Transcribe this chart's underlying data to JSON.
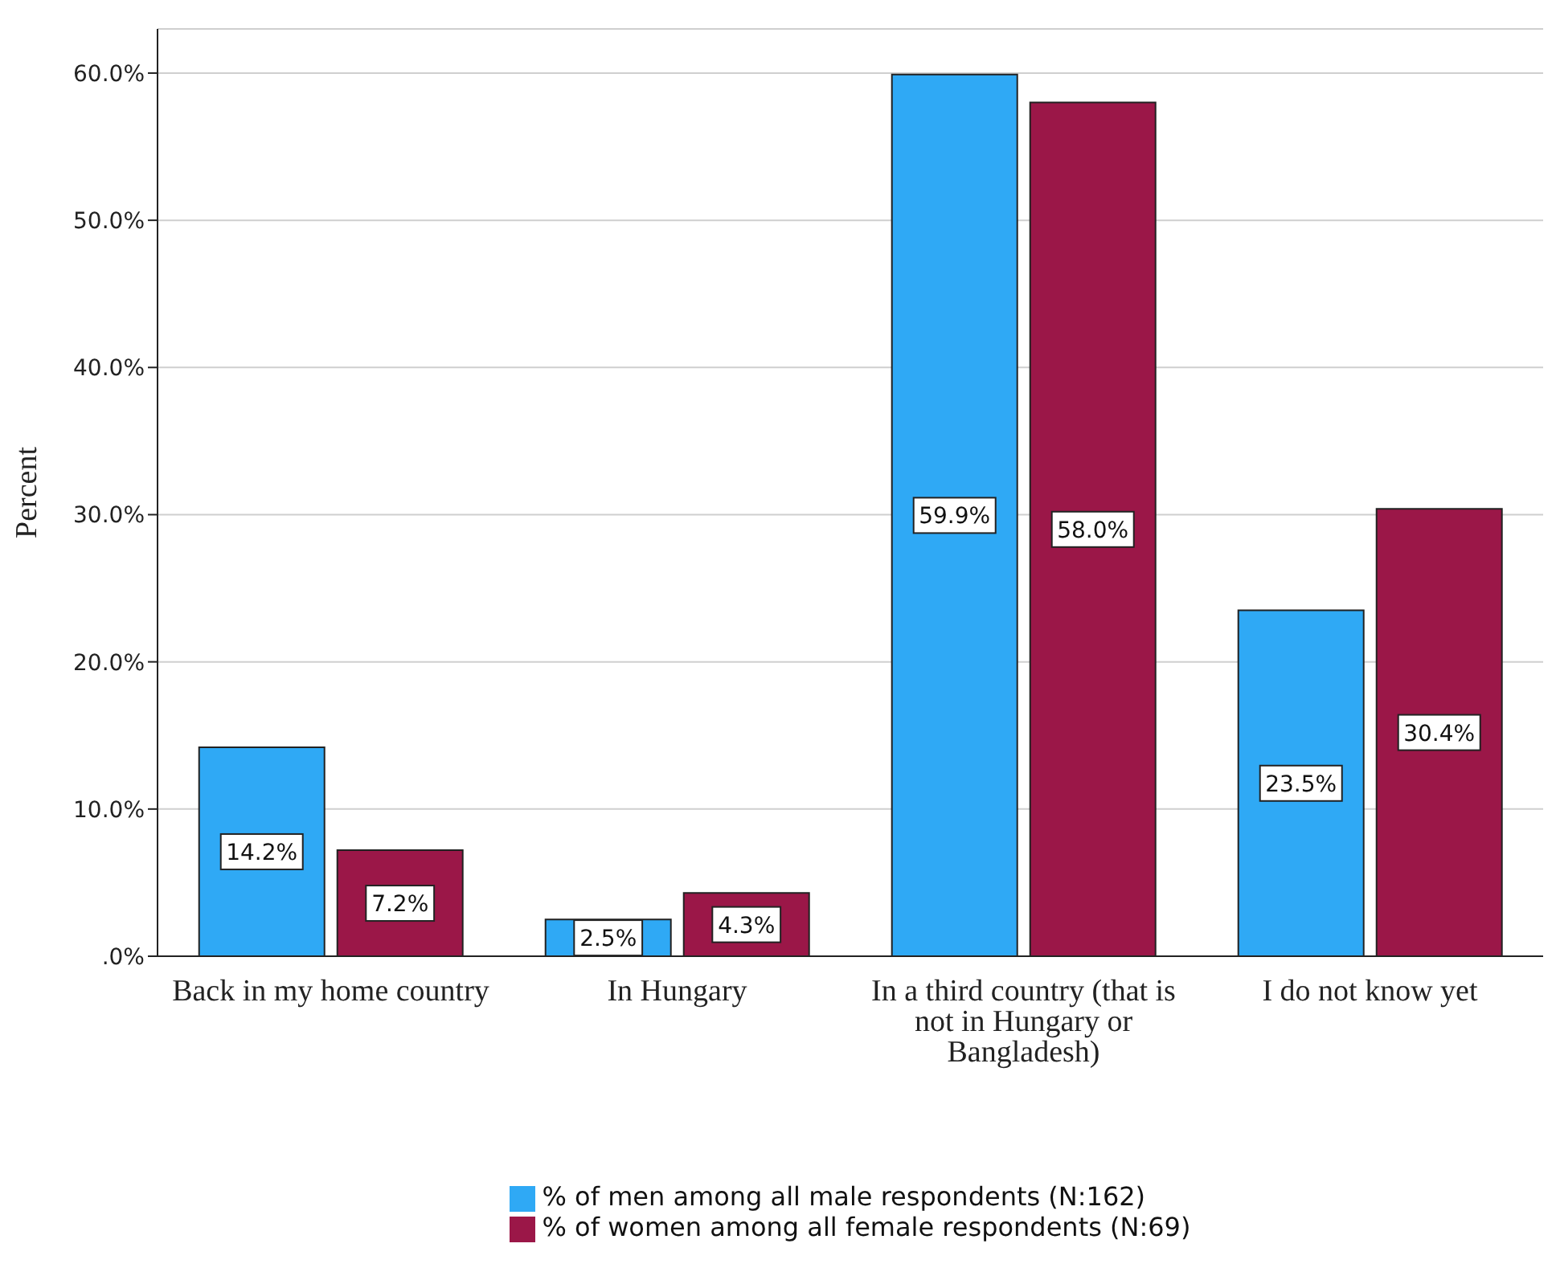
{
  "chart_data": {
    "type": "bar",
    "ylabel": "Percent",
    "categories": [
      "Back in my home country",
      "In Hungary",
      "In a third country (that is not in Hungary or Bangladesh)",
      "I do not know yet"
    ],
    "series": [
      {
        "name": "% of men among all male respondents (N:162)",
        "color": "#2fa9f5",
        "values": [
          14.2,
          2.5,
          59.9,
          23.5
        ],
        "value_labels": [
          "14.2%",
          "2.5%",
          "59.9%",
          "23.5%"
        ]
      },
      {
        "name": "% of women among all female respondents (N:69)",
        "color": "#9b1748",
        "values": [
          7.2,
          4.3,
          58.0,
          30.4
        ],
        "value_labels": [
          "7.2%",
          "4.3%",
          "58.0%",
          "30.4%"
        ]
      }
    ],
    "ylim": [
      0,
      63
    ],
    "yticks": [
      {
        "value": 0,
        "label": ".0%"
      },
      {
        "value": 10,
        "label": "10.0%"
      },
      {
        "value": 20,
        "label": "20.0%"
      },
      {
        "value": 30,
        "label": "30.0%"
      },
      {
        "value": 40,
        "label": "40.0%"
      },
      {
        "value": 50,
        "label": "50.0%"
      },
      {
        "value": 60,
        "label": "60.0%"
      }
    ],
    "grid": "y",
    "legend": "bottom"
  }
}
